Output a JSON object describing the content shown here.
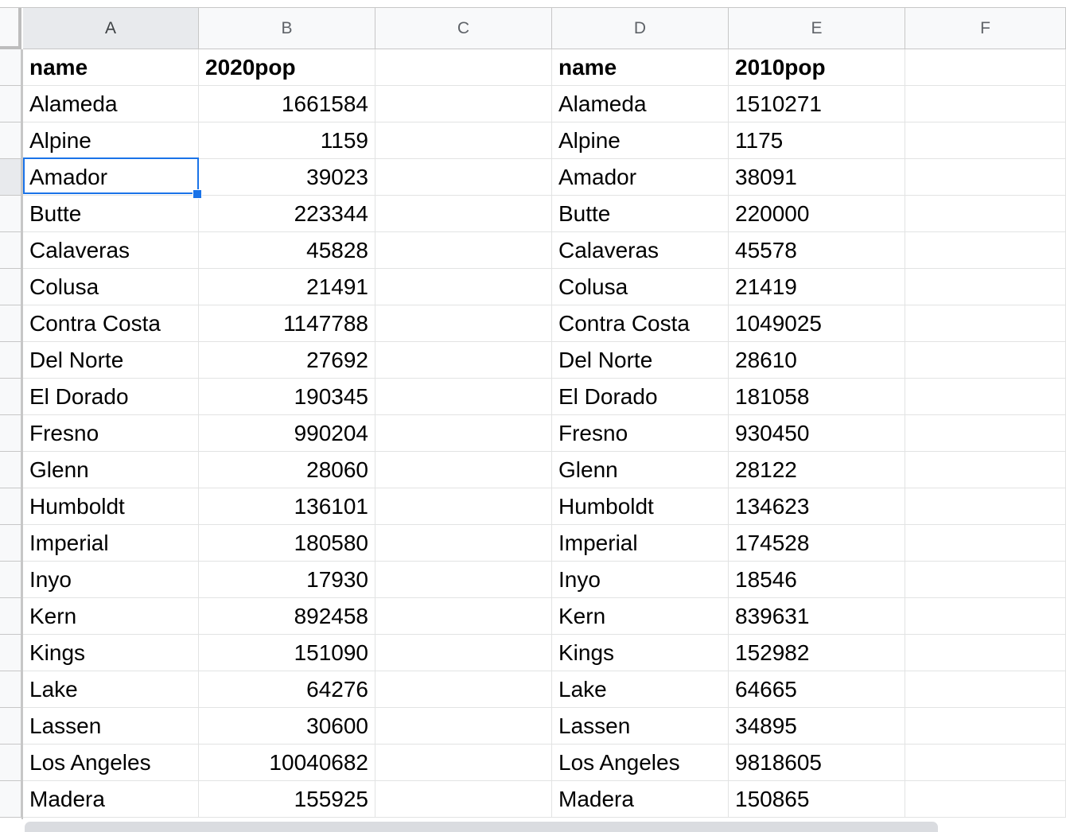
{
  "columns": [
    "A",
    "B",
    "C",
    "D",
    "E",
    "F"
  ],
  "selected_cell": "A4",
  "rows": [
    [
      "name",
      "2020pop",
      "",
      "name",
      "2010pop",
      ""
    ],
    [
      "Alameda",
      "1661584",
      "",
      "Alameda",
      "1510271",
      ""
    ],
    [
      "Alpine",
      "1159",
      "",
      "Alpine",
      "1175",
      ""
    ],
    [
      "Amador",
      "39023",
      "",
      "Amador",
      "38091",
      ""
    ],
    [
      "Butte",
      "223344",
      "",
      "Butte",
      "220000",
      ""
    ],
    [
      "Calaveras",
      "45828",
      "",
      "Calaveras",
      "45578",
      ""
    ],
    [
      "Colusa",
      "21491",
      "",
      "Colusa",
      "21419",
      ""
    ],
    [
      "Contra Costa",
      "1147788",
      "",
      "Contra Costa",
      "1049025",
      ""
    ],
    [
      "Del Norte",
      "27692",
      "",
      "Del Norte",
      "28610",
      ""
    ],
    [
      "El Dorado",
      "190345",
      "",
      "El Dorado",
      "181058",
      ""
    ],
    [
      "Fresno",
      "990204",
      "",
      "Fresno",
      "930450",
      ""
    ],
    [
      "Glenn",
      "28060",
      "",
      "Glenn",
      "28122",
      ""
    ],
    [
      "Humboldt",
      "136101",
      "",
      "Humboldt",
      "134623",
      ""
    ],
    [
      "Imperial",
      "180580",
      "",
      "Imperial",
      "174528",
      ""
    ],
    [
      "Inyo",
      "17930",
      "",
      "Inyo",
      "18546",
      ""
    ],
    [
      "Kern",
      "892458",
      "",
      "Kern",
      "839631",
      ""
    ],
    [
      "Kings",
      "151090",
      "",
      "Kings",
      "152982",
      ""
    ],
    [
      "Lake",
      "64276",
      "",
      "Lake",
      "64665",
      ""
    ],
    [
      "Lassen",
      "30600",
      "",
      "Lassen",
      "34895",
      ""
    ],
    [
      "Los Angeles",
      "10040682",
      "",
      "Los Angeles",
      "9818605",
      ""
    ],
    [
      "Madera",
      "155925",
      "",
      "Madera",
      "150865",
      ""
    ]
  ],
  "colors": {
    "selection": "#1a73e8",
    "header_bg": "#f8f9fa",
    "header_active_bg": "#e8eaed",
    "gridline": "#e2e3e3"
  }
}
